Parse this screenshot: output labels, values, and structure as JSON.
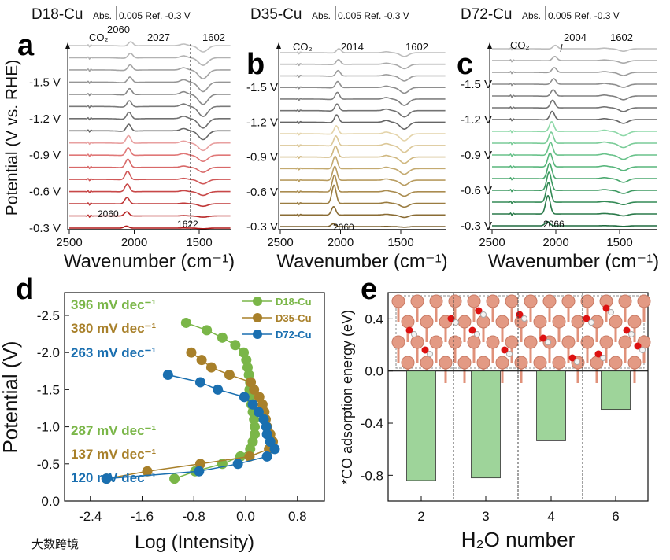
{
  "chart_data": [
    {
      "type": "line",
      "panel": "a",
      "title": "D18-Cu",
      "scale_label": "Abs.",
      "scale_value": "0.005 Ref. -0.3 V",
      "xlabel": "Wavenumber (cm⁻¹)",
      "ylabel": "Potential (V vs. RHE)",
      "xlim": [
        2500,
        1260
      ],
      "xticks": [
        "2500",
        "2000",
        "1500"
      ],
      "potential_labels": [
        "-0.3 V",
        "-0.6 V",
        "-0.9 V",
        "-1.2 V",
        "-1.5 V"
      ],
      "potentials": [
        -0.3,
        -0.4,
        -0.5,
        -0.6,
        -0.7,
        -0.8,
        -0.9,
        -1.0,
        -1.1,
        -1.2,
        -1.3,
        -1.4,
        -1.5,
        -1.6,
        -1.7,
        -1.8
      ],
      "co_center": [
        2060,
        2027
      ],
      "co_intensity": [
        0.15,
        0.3,
        0.45,
        0.55,
        0.6,
        0.6,
        0.55,
        0.55,
        0.5,
        0.5,
        0.45,
        0.45,
        0.4,
        0.4,
        0.35,
        0.3
      ],
      "dip_intensity": [
        0.05,
        0.1,
        0.2,
        0.3,
        0.35,
        0.4,
        0.5,
        0.6,
        0.7,
        0.75,
        0.8,
        0.8,
        0.75,
        0.7,
        0.6,
        0.5
      ],
      "colors": [
        "#b01818",
        "#b82828",
        "#c03838",
        "#c84848",
        "#d05858",
        "#d86868",
        "#e07878",
        "#e8a0a0",
        "#666666",
        "#707070",
        "#7a7a7a",
        "#888888",
        "#969696",
        "#a4a4a4",
        "#b2b2b2",
        "#c0c0c0"
      ],
      "annotations": {
        "co2": "CO₂",
        "p1": "2060",
        "p2": "2027",
        "p3": "1602",
        "p4": "2060",
        "p5": "1622"
      }
    },
    {
      "type": "line",
      "panel": "b",
      "title": "D35-Cu",
      "scale_label": "Abs.",
      "scale_value": "0.005 Ref. -0.3 V",
      "xlabel": "Wavenumber (cm⁻¹)",
      "xlim": [
        2500,
        1300
      ],
      "xticks": [
        "2500",
        "2000",
        "1500"
      ],
      "potential_labels": [
        "-0.3 V",
        "-0.6 V",
        "-0.9 V",
        "-1.2 V",
        "-1.5 V"
      ],
      "potentials": [
        -0.3,
        -0.4,
        -0.5,
        -0.6,
        -0.7,
        -0.8,
        -0.9,
        -1.0,
        -1.1,
        -1.2,
        -1.3,
        -1.4,
        -1.5,
        -1.6,
        -1.7,
        -1.8
      ],
      "co_center": [
        2060,
        2014
      ],
      "co_intensity": [
        0.2,
        0.6,
        1.3,
        1.2,
        1.0,
        0.9,
        0.8,
        0.7,
        0.6,
        0.55,
        0.5,
        0.5,
        0.45,
        0.4,
        0.35,
        0.3
      ],
      "dip_intensity": [
        0.05,
        0.2,
        0.3,
        0.35,
        0.4,
        0.45,
        0.5,
        0.55,
        0.55,
        0.55,
        0.5,
        0.5,
        0.45,
        0.4,
        0.35,
        0.3
      ],
      "colors": [
        "#7a5e2a",
        "#8a6c34",
        "#9a7c40",
        "#aa8c50",
        "#b89c60",
        "#c4aa70",
        "#d0b880",
        "#dcc898",
        "#e4d4aa",
        "#666666",
        "#737373",
        "#808080",
        "#8e8e8e",
        "#9c9c9c",
        "#aaaaaa",
        "#bdbdbd"
      ],
      "annotations": {
        "co2": "CO₂",
        "p1": "2014",
        "p2": "1602",
        "p3": "2060"
      }
    },
    {
      "type": "line",
      "panel": "c",
      "title": "D72-Cu",
      "scale_label": "Abs.",
      "scale_value": "0.005 Ref. -0.3 V",
      "xlabel": "Wavenumber (cm⁻¹)",
      "xlim": [
        2500,
        1290
      ],
      "xticks": [
        "2500",
        "2000",
        "1500"
      ],
      "potential_labels": [
        "-0.3 V",
        "-0.6 V",
        "-0.9 V",
        "-1.2 V",
        "-1.5 V"
      ],
      "potentials": [
        -0.3,
        -0.4,
        -0.5,
        -0.6,
        -0.7,
        -0.8,
        -0.9,
        -1.0,
        -1.1,
        -1.2,
        -1.3,
        -1.4,
        -1.5,
        -1.6,
        -1.7,
        -1.8
      ],
      "co_center": [
        2066,
        2004
      ],
      "co_intensity": [
        0.3,
        1.3,
        1.4,
        1.3,
        1.1,
        1.0,
        0.9,
        0.8,
        0.7,
        0.6,
        0.55,
        0.45,
        0.4,
        0.35,
        0.3,
        0.25
      ],
      "dip_intensity": [
        0.05,
        0.15,
        0.2,
        0.25,
        0.3,
        0.3,
        0.35,
        0.35,
        0.35,
        0.3,
        0.3,
        0.3,
        0.25,
        0.25,
        0.2,
        0.2
      ],
      "colors": [
        "#1e6a3e",
        "#2a7a4a",
        "#348a56",
        "#3e9a62",
        "#4aa86e",
        "#58b67c",
        "#68c28a",
        "#7acc98",
        "#8ed8a8",
        "#666666",
        "#737373",
        "#808080",
        "#8e8e8e",
        "#9c9c9c",
        "#aaaaaa",
        "#bdbdbd"
      ],
      "annotations": {
        "co2": "CO₂",
        "p1": "2004",
        "p2": "1602",
        "p3": "2066"
      }
    },
    {
      "type": "scatter",
      "panel": "d",
      "xlabel": "Log (Intensity)",
      "ylabel": "Potential (V)",
      "xlim": [
        -2.8,
        1.22
      ],
      "ylim": [
        0,
        -2.8
      ],
      "xticks": [
        "-2.4",
        "-1.6",
        "-0.8",
        "0.0",
        "0.8"
      ],
      "xtick_values": [
        -2.4,
        -1.6,
        -0.8,
        0,
        0.8
      ],
      "yticks": [
        "0.0",
        "-0.5",
        "-1.0",
        "-1.5",
        "-2.0",
        "-2.5"
      ],
      "ytick_values": [
        0,
        -0.5,
        -1,
        -1.5,
        -2,
        -2.5
      ],
      "legend_position": "top-right",
      "series": [
        {
          "name": "D18-Cu",
          "color": "#7ab648",
          "potential": [
            -0.3,
            -0.4,
            -0.5,
            -0.6,
            -0.7,
            -0.8,
            -0.9,
            -1.0,
            -1.1,
            -1.2,
            -1.3,
            -1.4,
            -1.5,
            -1.6,
            -1.7,
            -1.8,
            -1.9,
            -2.0,
            -2.1,
            -2.2,
            -2.3,
            -2.4
          ],
          "log_intensity": [
            -1.1,
            -0.78,
            -0.36,
            -0.08,
            0.07,
            0.11,
            0.14,
            0.14,
            0.13,
            0.11,
            0.09,
            0.07,
            0.06,
            0.07,
            0.05,
            0.03,
            0.01,
            -0.03,
            -0.16,
            -0.36,
            -0.6,
            -0.92
          ]
        },
        {
          "name": "D35-Cu",
          "color": "#a8802a",
          "potential": [
            -0.3,
            -0.4,
            -0.5,
            -0.6,
            -0.7,
            -0.8,
            -0.9,
            -1.0,
            -1.1,
            -1.2,
            -1.3,
            -1.4,
            -1.5,
            -1.6,
            -1.7,
            -1.8,
            -1.9,
            -2.0
          ],
          "log_intensity": [
            -2.15,
            -1.52,
            -0.7,
            0.06,
            0.36,
            0.42,
            0.38,
            0.33,
            0.31,
            0.29,
            0.26,
            0.21,
            0.13,
            0.08,
            -0.25,
            -0.53,
            -0.68,
            -0.84
          ]
        },
        {
          "name": "D72-Cu",
          "color": "#1a6fb0",
          "potential": [
            -0.3,
            -0.4,
            -0.5,
            -0.6,
            -0.7,
            -0.8,
            -0.9,
            -1.0,
            -1.1,
            -1.2,
            -1.3,
            -1.4,
            -1.5,
            -1.6,
            -1.7
          ],
          "log_intensity": [
            -2.15,
            -0.72,
            -0.12,
            0.33,
            0.45,
            0.38,
            0.33,
            0.32,
            0.28,
            0.2,
            0.11,
            -0.02,
            -0.43,
            -0.7,
            -1.2
          ]
        }
      ],
      "slopes": [
        {
          "text": "396 mV dec⁻¹",
          "color": "#7ab648"
        },
        {
          "text": "380 mV dec⁻¹",
          "color": "#a8802a"
        },
        {
          "text": "263 mV dec⁻¹",
          "color": "#1a6fb0"
        },
        {
          "text": "287 mV dec⁻¹",
          "color": "#7ab648"
        },
        {
          "text": "137 mV dec⁻¹",
          "color": "#a8802a"
        },
        {
          "text": "120 mV dec⁻¹",
          "color": "#1a6fb0"
        }
      ]
    },
    {
      "type": "bar",
      "panel": "e",
      "xlabel": "H₂O number",
      "ylabel": "*CO adsorption energy (eV)",
      "categories": [
        "2",
        "3",
        "4",
        "6"
      ],
      "values": [
        -0.84,
        -0.82,
        -0.535,
        -0.295
      ],
      "ylim": [
        -1.0,
        0.6
      ],
      "yticks": [
        "0.4",
        "0.0",
        "-0.4",
        "-0.8"
      ],
      "ytick_values": [
        0.4,
        0,
        -0.4,
        -0.8
      ],
      "bar_color": "#9ed49a"
    }
  ],
  "panel_letters": [
    "a",
    "b",
    "c",
    "d",
    "e"
  ],
  "watermark": "大数跨境"
}
